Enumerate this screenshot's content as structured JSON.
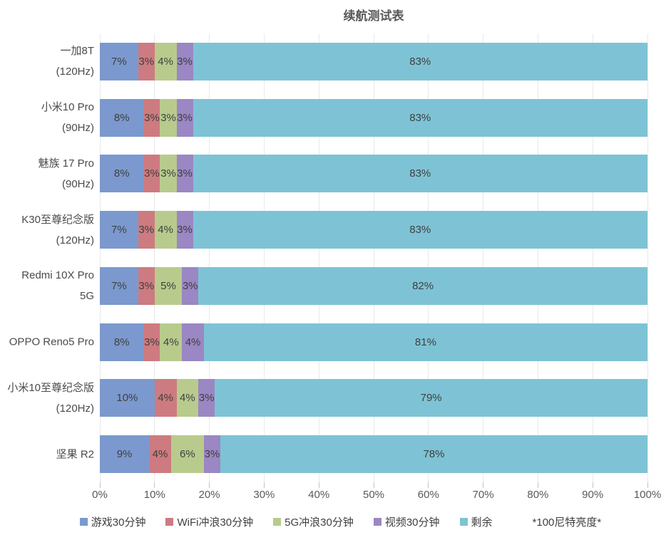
{
  "chart_data": {
    "type": "bar",
    "orientation": "horizontal",
    "stacked": true,
    "title": "续航测试表",
    "note": "*100尼特亮度*",
    "legend_position": "bottom",
    "grid": true,
    "xlim": [
      0,
      100
    ],
    "x_tick_labels": [
      "0%",
      "10%",
      "20%",
      "30%",
      "40%",
      "50%",
      "60%",
      "70%",
      "80%",
      "90%",
      "100%"
    ],
    "categories": [
      [
        "一加8T",
        "(120Hz)"
      ],
      [
        "小米10 Pro",
        "(90Hz)"
      ],
      [
        "魅族 17 Pro",
        "(90Hz)"
      ],
      [
        "K30至尊纪念版",
        "(120Hz)"
      ],
      [
        "Redmi 10X Pro",
        "5G"
      ],
      [
        "OPPO Reno5 Pro"
      ],
      [
        "小米10至尊纪念版",
        "(120Hz)"
      ],
      [
        "坚果 R2"
      ]
    ],
    "series": [
      {
        "name": "游戏30分钟",
        "color": "#7b99ce",
        "values": [
          7,
          8,
          8,
          7,
          7,
          8,
          10,
          9
        ]
      },
      {
        "name": "WiFi冲浪30分钟",
        "color": "#cd7b80",
        "values": [
          3,
          3,
          3,
          3,
          3,
          3,
          4,
          4
        ]
      },
      {
        "name": "5G冲浪30分钟",
        "color": "#b8cb8d",
        "values": [
          4,
          3,
          3,
          4,
          5,
          4,
          4,
          6
        ]
      },
      {
        "name": "视频30分钟",
        "color": "#9a87c3",
        "values": [
          3,
          3,
          3,
          3,
          3,
          4,
          3,
          3
        ]
      },
      {
        "name": "剩余",
        "color": "#7ec3d5",
        "values": [
          83,
          83,
          83,
          83,
          82,
          81,
          79,
          78
        ]
      }
    ],
    "data_label_suffix": "%"
  }
}
